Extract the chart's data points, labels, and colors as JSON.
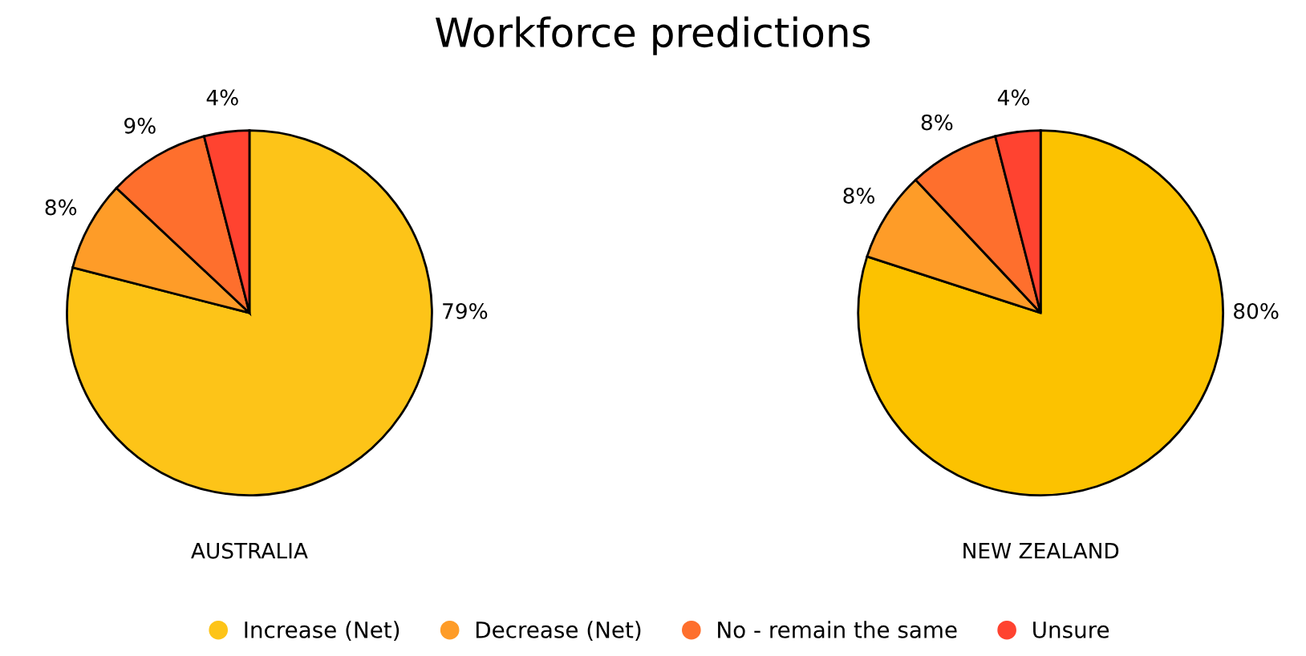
{
  "chart_data": [
    {
      "type": "pie",
      "title": "Workforce predictions",
      "xlabel": "AUSTRALIA",
      "categories": [
        "Increase (Net)",
        "Decrease (Net)",
        "No - remain the same",
        "Unsure"
      ],
      "values": [
        79,
        8,
        9,
        4
      ],
      "value_labels": [
        "79%",
        "8%",
        "9%",
        "4%"
      ],
      "colors": [
        "#fdc418",
        "#fe9c28",
        "#fe6f2d",
        "#ff4330"
      ],
      "legend": "bottom"
    },
    {
      "type": "pie",
      "xlabel": "NEW ZEALAND",
      "values": [
        80,
        8,
        8,
        4
      ],
      "value_labels": [
        "80%",
        "8%",
        "8%",
        "4%"
      ],
      "colors": [
        "#fcc200",
        "#fe9c28",
        "#fe6f2d",
        "#ff4330"
      ]
    }
  ]
}
